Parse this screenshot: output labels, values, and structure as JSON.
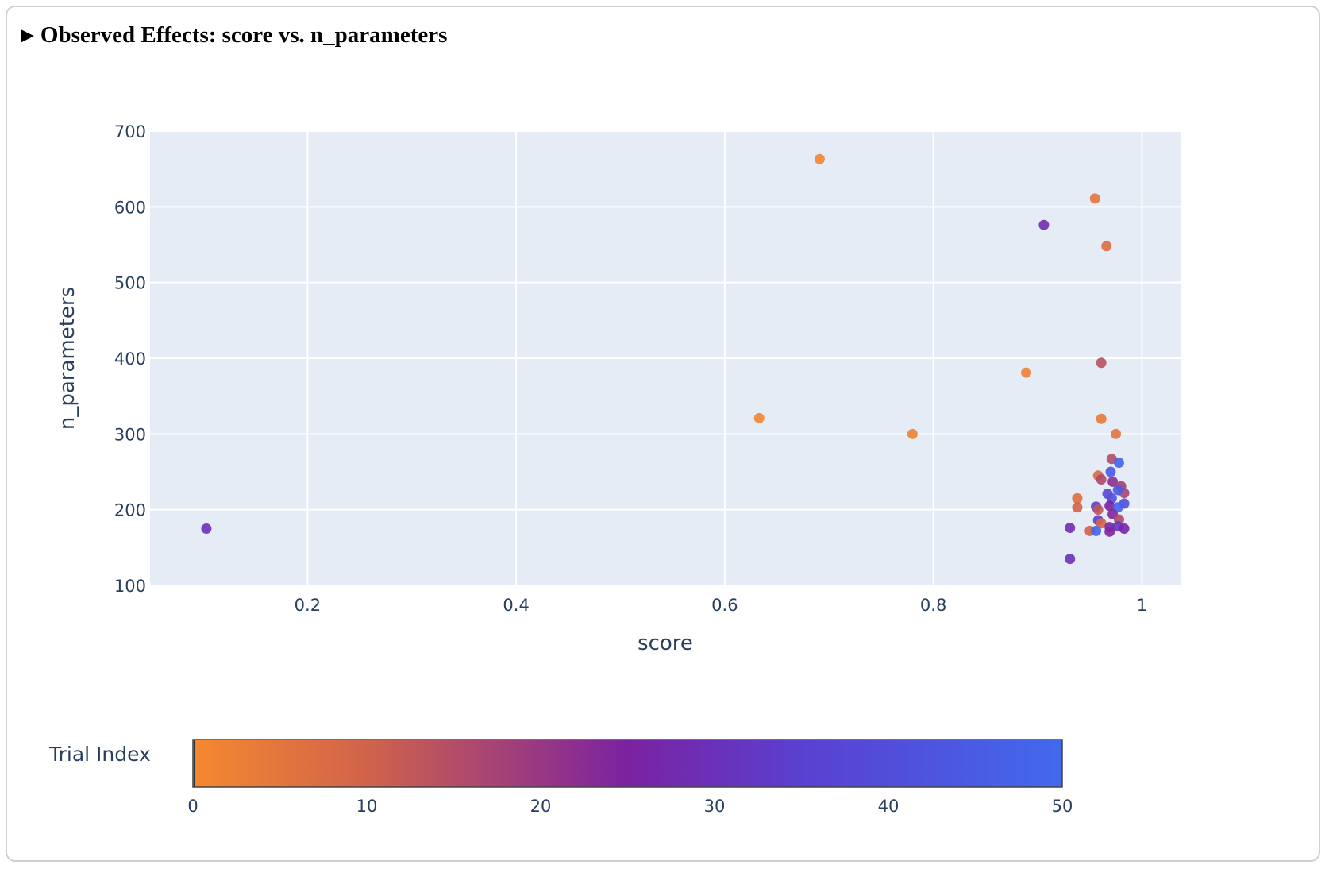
{
  "header": {
    "title": "Observed Effects: score vs. n_parameters",
    "toggle_icon": "triangle-right-icon"
  },
  "chart_data": {
    "type": "scatter",
    "title": "Observed Effects: score vs. n_parameters",
    "xlabel": "score",
    "ylabel": "n_parameters",
    "xlim": [
      0.049,
      1.037
    ],
    "ylim": [
      100,
      700
    ],
    "xticks": [
      0.2,
      0.4,
      0.6,
      0.8,
      1
    ],
    "xtick_labels": [
      "0.2",
      "0.4",
      "0.6",
      "0.8",
      "1"
    ],
    "yticks": [
      100,
      200,
      300,
      400,
      500,
      600,
      700
    ],
    "ytick_labels": [
      "100",
      "200",
      "300",
      "400",
      "500",
      "600",
      "700"
    ],
    "grid": true,
    "colorbar": {
      "title": "Trial Index",
      "range": [
        0,
        50
      ],
      "ticks": [
        "0",
        "10",
        "20",
        "30",
        "40",
        "50"
      ],
      "colors": [
        "#f5892f",
        "#d0634a",
        "#7b22a1",
        "#5a40d0",
        "#4169ed"
      ]
    },
    "points": [
      {
        "x": 0.691,
        "y": 663,
        "trial": 1
      },
      {
        "x": 0.955,
        "y": 611,
        "trial": 5
      },
      {
        "x": 0.906,
        "y": 576,
        "trial": 28
      },
      {
        "x": 0.966,
        "y": 548,
        "trial": 7
      },
      {
        "x": 0.961,
        "y": 394,
        "trial": 14
      },
      {
        "x": 0.889,
        "y": 381,
        "trial": 2
      },
      {
        "x": 0.961,
        "y": 320,
        "trial": 4
      },
      {
        "x": 0.633,
        "y": 321,
        "trial": 1
      },
      {
        "x": 0.78,
        "y": 300,
        "trial": 2
      },
      {
        "x": 0.975,
        "y": 300,
        "trial": 5
      },
      {
        "x": 0.103,
        "y": 175,
        "trial": 30
      },
      {
        "x": 0.931,
        "y": 135,
        "trial": 30
      },
      {
        "x": 0.931,
        "y": 176,
        "trial": 28
      },
      {
        "x": 0.971,
        "y": 267,
        "trial": 15
      },
      {
        "x": 0.978,
        "y": 262,
        "trial": 48
      },
      {
        "x": 0.97,
        "y": 250,
        "trial": 44
      },
      {
        "x": 0.958,
        "y": 245,
        "trial": 8
      },
      {
        "x": 0.961,
        "y": 240,
        "trial": 16
      },
      {
        "x": 0.972,
        "y": 237,
        "trial": 22
      },
      {
        "x": 0.98,
        "y": 231,
        "trial": 18
      },
      {
        "x": 0.983,
        "y": 222,
        "trial": 17
      },
      {
        "x": 0.967,
        "y": 221,
        "trial": 38
      },
      {
        "x": 0.977,
        "y": 226,
        "trial": 45
      },
      {
        "x": 0.971,
        "y": 215,
        "trial": 40
      },
      {
        "x": 0.938,
        "y": 215,
        "trial": 7
      },
      {
        "x": 0.938,
        "y": 203,
        "trial": 10
      },
      {
        "x": 0.956,
        "y": 204,
        "trial": 35
      },
      {
        "x": 0.958,
        "y": 200,
        "trial": 13
      },
      {
        "x": 0.969,
        "y": 205,
        "trial": 25
      },
      {
        "x": 0.983,
        "y": 208,
        "trial": 40
      },
      {
        "x": 0.977,
        "y": 203,
        "trial": 47
      },
      {
        "x": 0.972,
        "y": 194,
        "trial": 24
      },
      {
        "x": 0.978,
        "y": 187,
        "trial": 16
      },
      {
        "x": 0.958,
        "y": 186,
        "trial": 33
      },
      {
        "x": 0.961,
        "y": 182,
        "trial": 9
      },
      {
        "x": 0.95,
        "y": 172,
        "trial": 10
      },
      {
        "x": 0.956,
        "y": 172,
        "trial": 48
      },
      {
        "x": 0.969,
        "y": 177,
        "trial": 27
      },
      {
        "x": 0.977,
        "y": 178,
        "trial": 32
      },
      {
        "x": 0.983,
        "y": 175,
        "trial": 26
      },
      {
        "x": 0.969,
        "y": 171,
        "trial": 24
      }
    ]
  }
}
